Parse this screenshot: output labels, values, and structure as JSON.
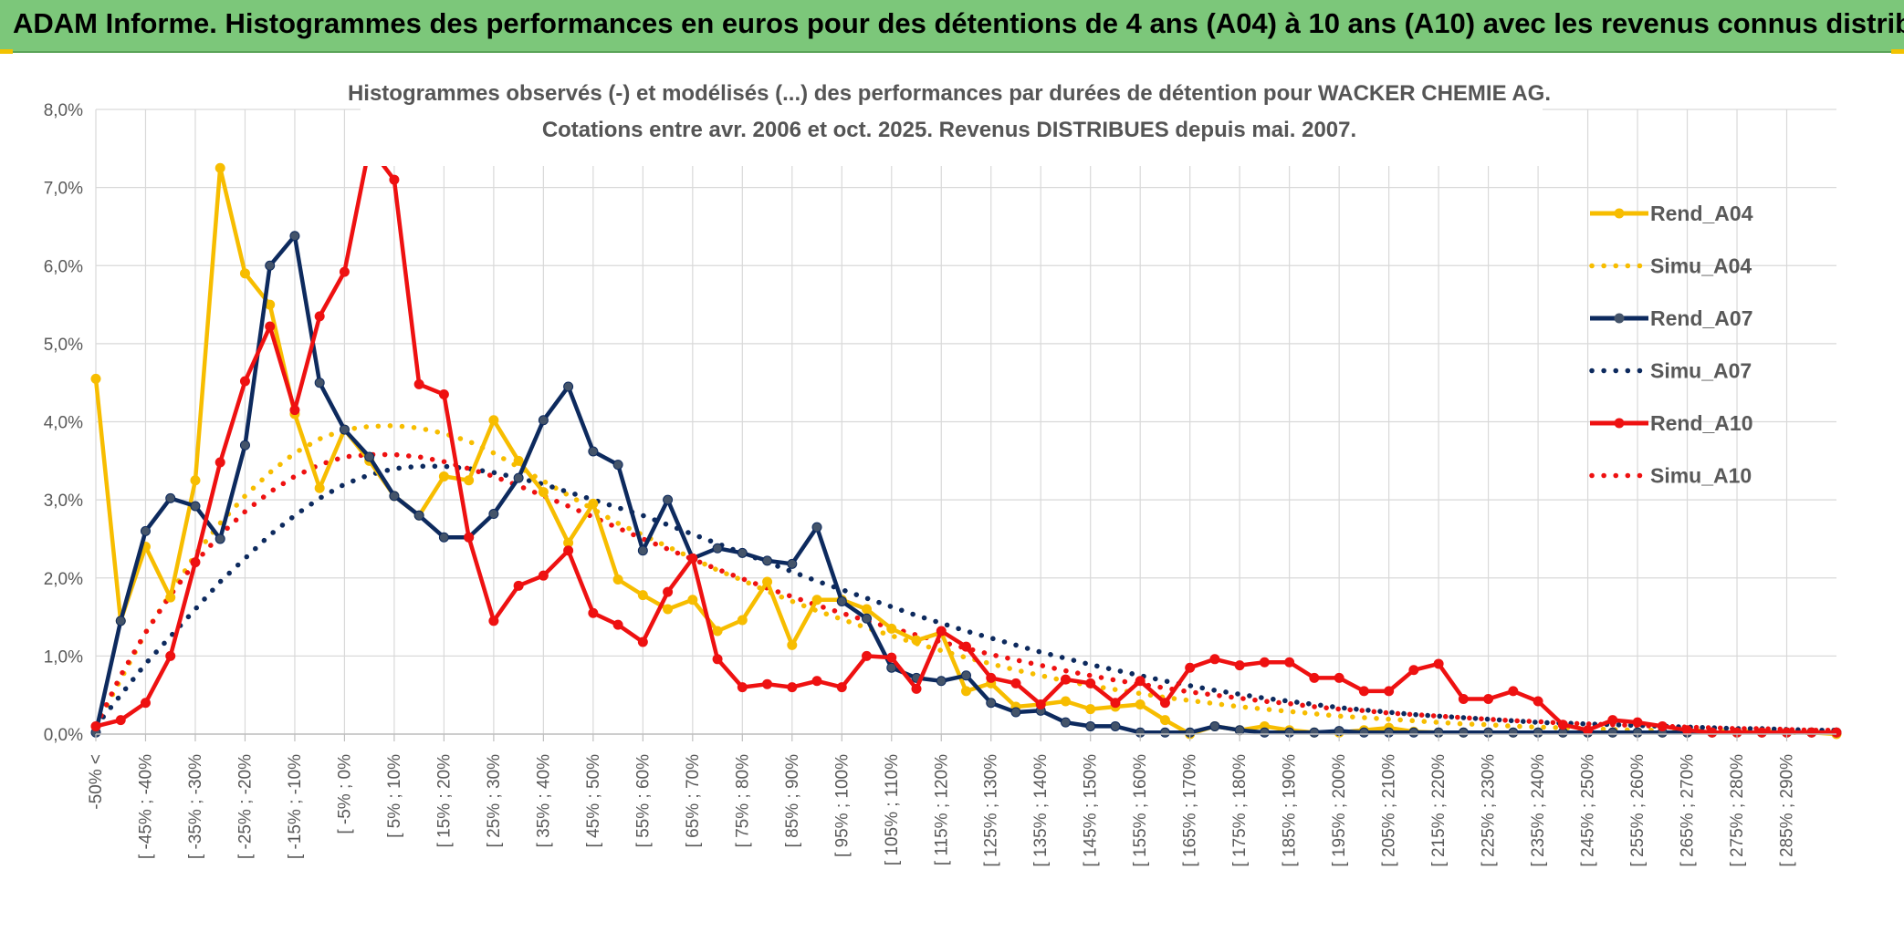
{
  "header": {
    "title": "ADAM Informe. Histogrammes des performances en euros pour des détentions de 4 ans (A04) à 10 ans (A10) avec les revenus connus distribués"
  },
  "chart_data": {
    "type": "line",
    "title": "Histogrammes observés (-) et modélisés (...) des performances par durées de détention pour WACKER CHEMIE AG.",
    "subtitle": "Cotations entre avr. 2006 et oct. 2025. Revenus DISTRIBUES depuis mai. 2007.",
    "xlabel": "",
    "ylabel": "",
    "ylim": [
      0,
      8
    ],
    "yticks": [
      "0,0%",
      "1,0%",
      "2,0%",
      "3,0%",
      "4,0%",
      "5,0%",
      "6,0%",
      "7,0%",
      "8,0%"
    ],
    "grid": true,
    "legend_position": "right",
    "x_labels": [
      "-50% <",
      "[ -45% ; -40%",
      "[ -35% ; -30%",
      "[ -25% ; -20%",
      "[ -15% ; -10%",
      "[ -5% ; 0%",
      "[ 5% ; 10%",
      "[ 15% ; 20%",
      "[ 25% ; 30%",
      "[ 35% ; 40%",
      "[ 45% ; 50%",
      "[ 55% ; 60%",
      "[ 65% ; 70%",
      "[ 75% ; 80%",
      "[ 85% ; 90%",
      "[ 95% ; 100%",
      "[ 105% ; 110%",
      "[ 115% ; 120%",
      "[ 125% ; 130%",
      "[ 135% ; 140%",
      "[ 145% ; 150%",
      "[ 155% ; 160%",
      "[ 165% ; 170%",
      "[ 175% ; 180%",
      "[ 185% ; 190%",
      "[ 195% ; 200%",
      "[ 205% ; 210%",
      "[ 215% ; 220%",
      "[ 225% ; 230%",
      "[ 235% ; 240%",
      "[ 245% ; 250%",
      "[ 255% ; 260%",
      "[ 265% ; 270%",
      "[ 275% ; 280%",
      "[ 285% ; 290%"
    ],
    "n_points": 71,
    "series": [
      {
        "name": "Rend_A04",
        "color": "#f7bd00",
        "style": "solid",
        "values": [
          4.55,
          1.45,
          2.4,
          1.75,
          3.25,
          7.25,
          5.9,
          5.5,
          4.1,
          3.15,
          3.9,
          3.5,
          3.05,
          2.8,
          3.3,
          3.25,
          4.02,
          3.5,
          3.1,
          2.45,
          2.95,
          1.98,
          1.78,
          1.6,
          1.72,
          1.32,
          1.46,
          1.95,
          1.14,
          1.72,
          1.72,
          1.6,
          1.35,
          1.2,
          1.3,
          0.55,
          0.65,
          0.35,
          0.38,
          0.42,
          0.32,
          0.35,
          0.38,
          0.18,
          0.0,
          0.1,
          0.05,
          0.1,
          0.05,
          0.02,
          0.02,
          0.05,
          0.08,
          0.03,
          0.02,
          0.02,
          0.02,
          0.02,
          0.02,
          0.02,
          0.02,
          0.02,
          0.02,
          0.02,
          0.02,
          0.02,
          0.02,
          0.02,
          0.02,
          0.02,
          0.0
        ]
      },
      {
        "name": "Simu_A04",
        "color": "#f7bd00",
        "style": "dotted",
        "values": [
          0.1,
          0.7,
          1.3,
          1.8,
          2.3,
          2.7,
          3.05,
          3.35,
          3.6,
          3.78,
          3.9,
          3.94,
          3.95,
          3.92,
          3.85,
          3.75,
          3.6,
          3.42,
          3.24,
          3.06,
          2.88,
          2.7,
          2.55,
          2.4,
          2.25,
          2.1,
          1.97,
          1.83,
          1.7,
          1.58,
          1.47,
          1.36,
          1.26,
          1.16,
          1.07,
          0.98,
          0.9,
          0.82,
          0.75,
          0.68,
          0.62,
          0.57,
          0.52,
          0.47,
          0.43,
          0.39,
          0.35,
          0.32,
          0.29,
          0.26,
          0.23,
          0.21,
          0.19,
          0.17,
          0.15,
          0.13,
          0.12,
          0.1,
          0.09,
          0.08,
          0.07,
          0.06,
          0.05,
          0.05,
          0.04,
          0.04,
          0.03,
          0.03,
          0.02,
          0.02,
          0.02
        ]
      },
      {
        "name": "Rend_A07",
        "color": "#0d2a5e",
        "style": "solid",
        "values": [
          0.02,
          1.45,
          2.6,
          3.02,
          2.92,
          2.5,
          3.7,
          6.0,
          6.38,
          4.5,
          3.9,
          3.55,
          3.05,
          2.8,
          2.52,
          2.52,
          2.82,
          3.28,
          4.02,
          4.45,
          3.62,
          3.45,
          2.35,
          3.0,
          2.25,
          2.38,
          2.32,
          2.22,
          2.18,
          2.65,
          1.7,
          1.48,
          0.85,
          0.72,
          0.68,
          0.75,
          0.4,
          0.28,
          0.3,
          0.15,
          0.1,
          0.1,
          0.02,
          0.02,
          0.02,
          0.1,
          0.05,
          0.02,
          0.02,
          0.02,
          0.04,
          0.02,
          0.02,
          0.02,
          0.02,
          0.02,
          0.02,
          0.02,
          0.02,
          0.02,
          0.02,
          0.02,
          0.02,
          0.02,
          0.02,
          0.02,
          0.02,
          0.02,
          0.02,
          0.02,
          0.02
        ]
      },
      {
        "name": "Simu_A07",
        "color": "#0d2a5e",
        "style": "dotted",
        "values": [
          0.1,
          0.5,
          0.9,
          1.25,
          1.6,
          1.95,
          2.25,
          2.55,
          2.8,
          3.02,
          3.2,
          3.32,
          3.4,
          3.43,
          3.43,
          3.4,
          3.35,
          3.28,
          3.2,
          3.1,
          3.0,
          2.9,
          2.8,
          2.68,
          2.56,
          2.44,
          2.32,
          2.2,
          2.08,
          1.96,
          1.85,
          1.74,
          1.63,
          1.52,
          1.42,
          1.32,
          1.23,
          1.14,
          1.05,
          0.97,
          0.89,
          0.82,
          0.75,
          0.68,
          0.62,
          0.56,
          0.51,
          0.46,
          0.42,
          0.38,
          0.34,
          0.31,
          0.28,
          0.25,
          0.23,
          0.21,
          0.19,
          0.17,
          0.15,
          0.14,
          0.13,
          0.12,
          0.11,
          0.1,
          0.09,
          0.08,
          0.07,
          0.07,
          0.06,
          0.05,
          0.05
        ]
      },
      {
        "name": "Rend_A10",
        "color": "#ee1111",
        "style": "solid",
        "values": [
          0.1,
          0.18,
          0.4,
          1.0,
          2.2,
          3.48,
          4.52,
          5.22,
          4.15,
          5.35,
          5.92,
          7.52,
          7.1,
          4.48,
          4.35,
          2.52,
          1.45,
          1.9,
          2.03,
          2.35,
          1.55,
          1.4,
          1.18,
          1.82,
          2.25,
          0.96,
          0.6,
          0.64,
          0.6,
          0.68,
          0.6,
          1.0,
          0.98,
          0.58,
          1.32,
          1.12,
          0.72,
          0.65,
          0.38,
          0.7,
          0.65,
          0.4,
          0.68,
          0.4,
          0.85,
          0.96,
          0.88,
          0.92,
          0.92,
          0.72,
          0.72,
          0.55,
          0.55,
          0.82,
          0.9,
          0.45,
          0.45,
          0.55,
          0.42,
          0.12,
          0.05,
          0.18,
          0.15,
          0.1,
          0.05,
          0.02,
          0.02,
          0.02,
          0.02,
          0.02,
          0.02
        ]
      },
      {
        "name": "Simu_A10",
        "color": "#ee1111",
        "style": "dotted",
        "values": [
          0.1,
          0.75,
          1.3,
          1.78,
          2.2,
          2.55,
          2.85,
          3.1,
          3.3,
          3.45,
          3.55,
          3.58,
          3.58,
          3.55,
          3.49,
          3.4,
          3.3,
          3.18,
          3.05,
          2.92,
          2.78,
          2.64,
          2.5,
          2.37,
          2.24,
          2.11,
          1.99,
          1.87,
          1.76,
          1.65,
          1.55,
          1.45,
          1.36,
          1.27,
          1.18,
          1.1,
          1.02,
          0.95,
          0.88,
          0.81,
          0.75,
          0.69,
          0.64,
          0.59,
          0.54,
          0.5,
          0.46,
          0.42,
          0.39,
          0.35,
          0.32,
          0.3,
          0.27,
          0.25,
          0.23,
          0.21,
          0.19,
          0.17,
          0.16,
          0.14,
          0.13,
          0.12,
          0.11,
          0.1,
          0.09,
          0.08,
          0.07,
          0.07,
          0.06,
          0.05,
          0.05
        ]
      }
    ]
  }
}
